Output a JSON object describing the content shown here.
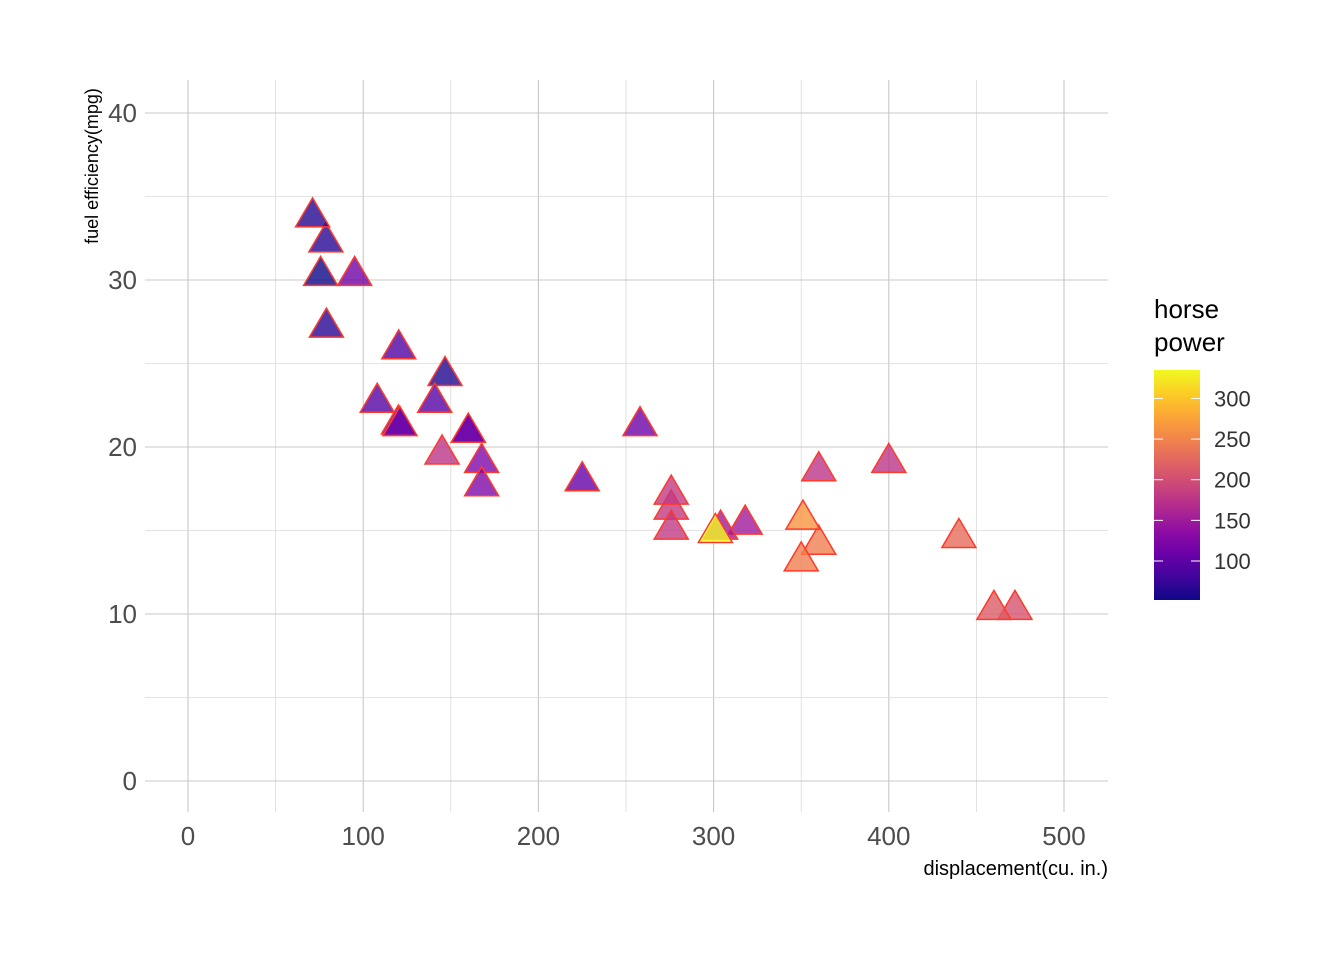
{
  "chart_data": {
    "type": "scatter",
    "title": "",
    "xlabel": "displacement(cu. in.)",
    "ylabel": "fuel efficiency(mpg)",
    "xlim": [
      -25,
      525
    ],
    "ylim": [
      -2,
      42
    ],
    "x_ticks": [
      0,
      100,
      200,
      300,
      400,
      500
    ],
    "y_ticks": [
      0,
      10,
      20,
      30,
      40
    ],
    "grid": true,
    "marker": "triangle",
    "marker_outline_color": "#FF3A2A",
    "color_legend": {
      "title_lines": [
        "horse",
        "power"
      ],
      "ticks": [
        100,
        150,
        200,
        250,
        300
      ],
      "range": [
        52,
        335
      ],
      "colormap": "plasma",
      "placement": "right"
    },
    "points": [
      {
        "x": 160,
        "y": 21.0,
        "hp": 110
      },
      {
        "x": 160,
        "y": 21.0,
        "hp": 110
      },
      {
        "x": 108,
        "y": 22.8,
        "hp": 93
      },
      {
        "x": 258,
        "y": 21.4,
        "hp": 110
      },
      {
        "x": 360,
        "y": 18.7,
        "hp": 175
      },
      {
        "x": 225,
        "y": 18.1,
        "hp": 105
      },
      {
        "x": 360,
        "y": 14.3,
        "hp": 245
      },
      {
        "x": 146.7,
        "y": 24.4,
        "hp": 62
      },
      {
        "x": 140.8,
        "y": 22.8,
        "hp": 95
      },
      {
        "x": 167.6,
        "y": 19.2,
        "hp": 123
      },
      {
        "x": 167.6,
        "y": 17.8,
        "hp": 123
      },
      {
        "x": 275.8,
        "y": 16.4,
        "hp": 180
      },
      {
        "x": 275.8,
        "y": 17.3,
        "hp": 180
      },
      {
        "x": 275.8,
        "y": 15.2,
        "hp": 180
      },
      {
        "x": 472,
        "y": 10.4,
        "hp": 205
      },
      {
        "x": 460,
        "y": 10.4,
        "hp": 215
      },
      {
        "x": 440,
        "y": 14.7,
        "hp": 230
      },
      {
        "x": 78.7,
        "y": 32.4,
        "hp": 66
      },
      {
        "x": 75.7,
        "y": 30.4,
        "hp": 52
      },
      {
        "x": 71.1,
        "y": 33.9,
        "hp": 65
      },
      {
        "x": 120.1,
        "y": 21.5,
        "hp": 97
      },
      {
        "x": 318,
        "y": 15.5,
        "hp": 150
      },
      {
        "x": 304,
        "y": 15.2,
        "hp": 150
      },
      {
        "x": 350,
        "y": 13.3,
        "hp": 245
      },
      {
        "x": 400,
        "y": 19.2,
        "hp": 175
      },
      {
        "x": 79,
        "y": 27.3,
        "hp": 66
      },
      {
        "x": 120.3,
        "y": 26.0,
        "hp": 91
      },
      {
        "x": 95.1,
        "y": 30.4,
        "hp": 113
      },
      {
        "x": 351,
        "y": 15.8,
        "hp": 264
      },
      {
        "x": 145,
        "y": 19.7,
        "hp": 175
      },
      {
        "x": 301,
        "y": 15.0,
        "hp": 335
      },
      {
        "x": 121,
        "y": 21.4,
        "hp": 109
      }
    ]
  }
}
